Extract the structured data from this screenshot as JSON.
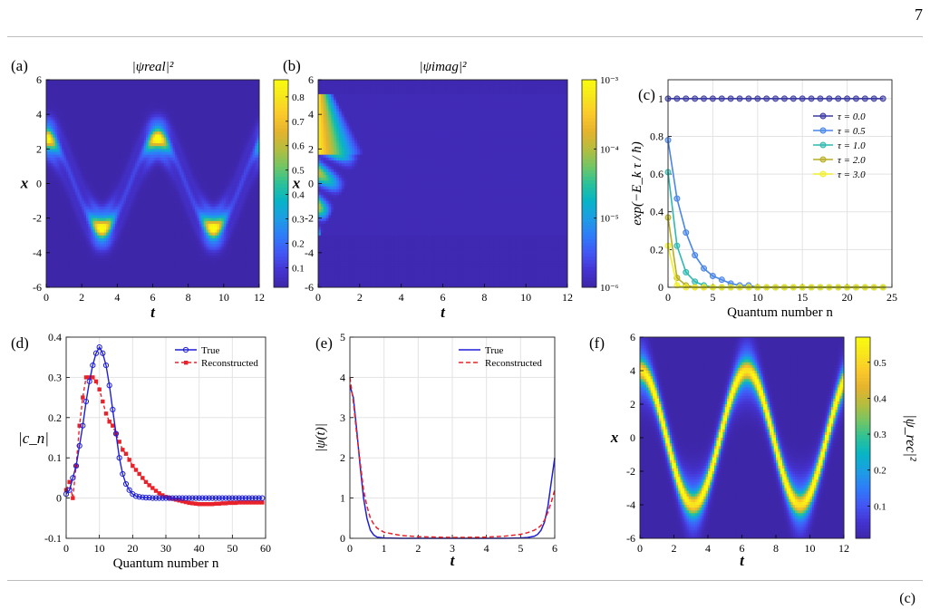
{
  "page": {
    "number": "7",
    "footer_mark": "(c)"
  },
  "colormap": [
    "#3e26a8",
    "#4433d1",
    "#4356f4",
    "#2f7cf9",
    "#1d9de4",
    "#07b4c7",
    "#29c199",
    "#72c665",
    "#b4bd3f",
    "#e4b32c",
    "#fbc82b",
    "#f7e51d",
    "#f9fb0e"
  ],
  "chart_data": [
    {
      "panel": "(a)",
      "type": "heatmap",
      "title": "|ψ_real|²",
      "xlabel": "t",
      "ylabel": "x",
      "xlim": [
        0,
        12
      ],
      "ylim": [
        -6,
        6
      ],
      "xticks": [
        "0",
        "2",
        "4",
        "6",
        "8",
        "10",
        "12"
      ],
      "yticks": [
        "-6",
        "-4",
        "-2",
        "0",
        "2",
        "4",
        "6"
      ],
      "colorbar": {
        "scale": "linear",
        "ticks": [
          "0.1",
          "0.2",
          "0.3",
          "0.4",
          "0.5",
          "0.6",
          "0.7",
          "0.8"
        ],
        "range": [
          0.02,
          0.87
        ]
      },
      "pattern": {
        "center_amplitude": 2.6,
        "period": 6.2832,
        "peak": 0.87
      }
    },
    {
      "panel": "(b)",
      "type": "heatmap",
      "title": "|ψ_imag|²",
      "xlabel": "t",
      "ylabel": "x",
      "xlim": [
        0,
        12
      ],
      "ylim": [
        -6,
        6
      ],
      "xticks": [
        "0",
        "2",
        "4",
        "6",
        "8",
        "10",
        "12"
      ],
      "yticks": [
        "-6",
        "-4",
        "-2",
        "0",
        "2",
        "4",
        "6"
      ],
      "colorbar": {
        "scale": "log",
        "ticks": [
          "10⁻³",
          "10⁻⁴",
          "10⁻⁵",
          "10⁻⁶"
        ],
        "range": [
          1e-06,
          0.001
        ]
      }
    },
    {
      "panel": "(c)",
      "type": "line",
      "xlabel": "Quantum number n",
      "ylabel": "exp(−E_k τ / ħ)",
      "xlim": [
        0,
        25
      ],
      "ylim": [
        0,
        1.1
      ],
      "xticks": [
        "0",
        "5",
        "10",
        "15",
        "20",
        "25"
      ],
      "yticks": [
        "0",
        "0.2",
        "0.4",
        "0.6",
        "0.8",
        "1"
      ],
      "legend_position": "right",
      "n": [
        0,
        1,
        2,
        3,
        4,
        5,
        6,
        7,
        8,
        9,
        10,
        11,
        12,
        13,
        14,
        15,
        16,
        17,
        18,
        19,
        20,
        21,
        22,
        23,
        24
      ],
      "series": [
        {
          "name": "τ = 0.0",
          "color": "#3b3ba3",
          "values": [
            1,
            1,
            1,
            1,
            1,
            1,
            1,
            1,
            1,
            1,
            1,
            1,
            1,
            1,
            1,
            1,
            1,
            1,
            1,
            1,
            1,
            1,
            1,
            1,
            1
          ]
        },
        {
          "name": "τ = 0.5",
          "color": "#4a86e8",
          "values": [
            0.78,
            0.47,
            0.29,
            0.17,
            0.1,
            0.06,
            0.04,
            0.02,
            0.01,
            0.01,
            0,
            0,
            0,
            0,
            0,
            0,
            0,
            0,
            0,
            0,
            0,
            0,
            0,
            0,
            0
          ]
        },
        {
          "name": "τ = 1.0",
          "color": "#2fb8b0",
          "values": [
            0.61,
            0.22,
            0.08,
            0.03,
            0.01,
            0,
            0,
            0,
            0,
            0,
            0,
            0,
            0,
            0,
            0,
            0,
            0,
            0,
            0,
            0,
            0,
            0,
            0,
            0,
            0
          ]
        },
        {
          "name": "τ = 2.0",
          "color": "#b8ae22",
          "values": [
            0.37,
            0.05,
            0.01,
            0,
            0,
            0,
            0,
            0,
            0,
            0,
            0,
            0,
            0,
            0,
            0,
            0,
            0,
            0,
            0,
            0,
            0,
            0,
            0,
            0,
            0
          ]
        },
        {
          "name": "τ = 3.0",
          "color": "#f2ee2a",
          "values": [
            0.22,
            0.01,
            0,
            0,
            0,
            0,
            0,
            0,
            0,
            0,
            0,
            0,
            0,
            0,
            0,
            0,
            0,
            0,
            0,
            0,
            0,
            0,
            0,
            0,
            0
          ]
        }
      ]
    },
    {
      "panel": "(d)",
      "type": "line",
      "xlabel": "Quantum number n",
      "ylabel": "|c_n|",
      "xlim": [
        0,
        60
      ],
      "ylim": [
        -0.1,
        0.4
      ],
      "xticks": [
        "0",
        "10",
        "20",
        "30",
        "40",
        "50",
        "60"
      ],
      "yticks": [
        "-0.1",
        "0",
        "0.1",
        "0.2",
        "0.3",
        "0.4"
      ],
      "legend_position": "top-right",
      "series": [
        {
          "name": "True",
          "color": "#1f1fd6",
          "marker": "circle",
          "x": [
            0,
            1,
            2,
            3,
            4,
            5,
            6,
            7,
            8,
            9,
            10,
            11,
            12,
            13,
            14,
            15,
            16,
            17,
            18,
            19,
            20,
            21,
            22,
            23,
            24,
            25,
            26,
            27,
            28,
            29,
            30,
            31,
            32,
            33,
            34,
            35,
            36,
            37,
            38,
            39,
            40,
            41,
            42,
            43,
            44,
            45,
            46,
            47,
            48,
            49,
            50,
            51,
            52,
            53,
            54,
            55,
            56,
            57,
            58,
            59
          ],
          "values": [
            0.01,
            0.02,
            0.05,
            0.08,
            0.13,
            0.18,
            0.24,
            0.29,
            0.33,
            0.36,
            0.375,
            0.36,
            0.33,
            0.28,
            0.22,
            0.16,
            0.1,
            0.06,
            0.035,
            0.02,
            0.01,
            0.005,
            0.003,
            0.002,
            0.001,
            0.001,
            0,
            0,
            0,
            0,
            0,
            0,
            0,
            0,
            0,
            0,
            0,
            0,
            0,
            0,
            0,
            0,
            0,
            0,
            0,
            0,
            0,
            0,
            0,
            0,
            0,
            0,
            0,
            0,
            0,
            0,
            0,
            0,
            0,
            0
          ]
        },
        {
          "name": "Reconstructed",
          "color": "#e8222a",
          "marker": "square",
          "x": [
            0,
            1,
            2,
            3,
            4,
            5,
            6,
            7,
            8,
            9,
            10,
            11,
            12,
            13,
            14,
            15,
            16,
            17,
            18,
            19,
            20,
            21,
            22,
            23,
            24,
            25,
            26,
            27,
            28,
            29,
            30,
            31,
            32,
            33,
            34,
            35,
            36,
            37,
            38,
            39,
            40,
            41,
            42,
            43,
            44,
            45,
            46,
            47,
            48,
            49,
            50,
            51,
            52,
            53,
            54,
            55,
            56,
            57,
            58,
            59
          ],
          "values": [
            0.02,
            0.04,
            0.0,
            0.08,
            0.18,
            0.25,
            0.3,
            0.3,
            0.3,
            0.29,
            0.27,
            0.24,
            0.21,
            0.19,
            0.18,
            0.16,
            0.14,
            0.12,
            0.11,
            0.095,
            0.08,
            0.07,
            0.06,
            0.05,
            0.04,
            0.032,
            0.025,
            0.018,
            0.012,
            0.007,
            0.003,
            0.0,
            -0.002,
            -0.004,
            -0.006,
            -0.008,
            -0.01,
            -0.012,
            -0.013,
            -0.014,
            -0.015,
            -0.015,
            -0.015,
            -0.015,
            -0.015,
            -0.014,
            -0.014,
            -0.013,
            -0.013,
            -0.012,
            -0.012,
            -0.012,
            -0.011,
            -0.011,
            -0.011,
            -0.011,
            -0.011,
            -0.011,
            -0.011,
            -0.011
          ]
        }
      ]
    },
    {
      "panel": "(e)",
      "type": "line",
      "xlabel": "t",
      "ylabel": "|ψ(t)|",
      "xlim": [
        0,
        6
      ],
      "ylim": [
        0,
        5
      ],
      "xticks": [
        "0",
        "1",
        "2",
        "3",
        "4",
        "5",
        "6"
      ],
      "yticks": [
        "0",
        "1",
        "2",
        "3",
        "4",
        "5"
      ],
      "legend_position": "top-right",
      "series": [
        {
          "name": "True",
          "color": "#1f1fd6",
          "x": [
            0,
            0.1,
            0.2,
            0.3,
            0.4,
            0.5,
            0.6,
            0.7,
            0.8,
            1,
            1.5,
            2,
            3,
            4,
            4.5,
            5,
            5.2,
            5.4,
            5.5,
            5.6,
            5.7,
            5.8,
            5.9,
            6
          ],
          "values": [
            3.8,
            3.5,
            2.7,
            1.8,
            1.0,
            0.5,
            0.2,
            0.08,
            0.03,
            0.01,
            0.0,
            0.0,
            0.0,
            0.0,
            0.0,
            0.01,
            0.02,
            0.05,
            0.1,
            0.2,
            0.4,
            0.8,
            1.4,
            2.0
          ]
        },
        {
          "name": "Reconstructed",
          "color": "#e8222a",
          "dashed": true,
          "x": [
            0,
            0.1,
            0.2,
            0.3,
            0.4,
            0.5,
            0.6,
            0.7,
            0.8,
            1,
            1.5,
            2,
            3,
            4,
            4.5,
            5,
            5.2,
            5.4,
            5.5,
            5.6,
            5.7,
            5.8,
            5.9,
            6
          ],
          "values": [
            4.0,
            3.4,
            2.6,
            1.9,
            1.2,
            0.8,
            0.5,
            0.35,
            0.25,
            0.15,
            0.07,
            0.04,
            0.02,
            0.03,
            0.05,
            0.1,
            0.14,
            0.2,
            0.25,
            0.32,
            0.45,
            0.65,
            0.9,
            1.2
          ]
        }
      ]
    },
    {
      "panel": "(f)",
      "type": "heatmap",
      "xlabel": "t",
      "ylabel": "x",
      "colorbar_label": "|ψ_rec|²",
      "xlim": [
        0,
        12
      ],
      "ylim": [
        -6,
        6
      ],
      "xticks": [
        "0",
        "2",
        "4",
        "6",
        "8",
        "10",
        "12"
      ],
      "yticks": [
        "-6",
        "-4",
        "-2",
        "0",
        "2",
        "4",
        "6"
      ],
      "colorbar": {
        "scale": "linear",
        "ticks": [
          "0.1",
          "0.2",
          "0.3",
          "0.4",
          "0.5"
        ],
        "range": [
          0.01,
          0.57
        ]
      },
      "pattern": {
        "center_amplitude": 4.0,
        "period": 6.2832,
        "peak": 0.57
      }
    }
  ]
}
